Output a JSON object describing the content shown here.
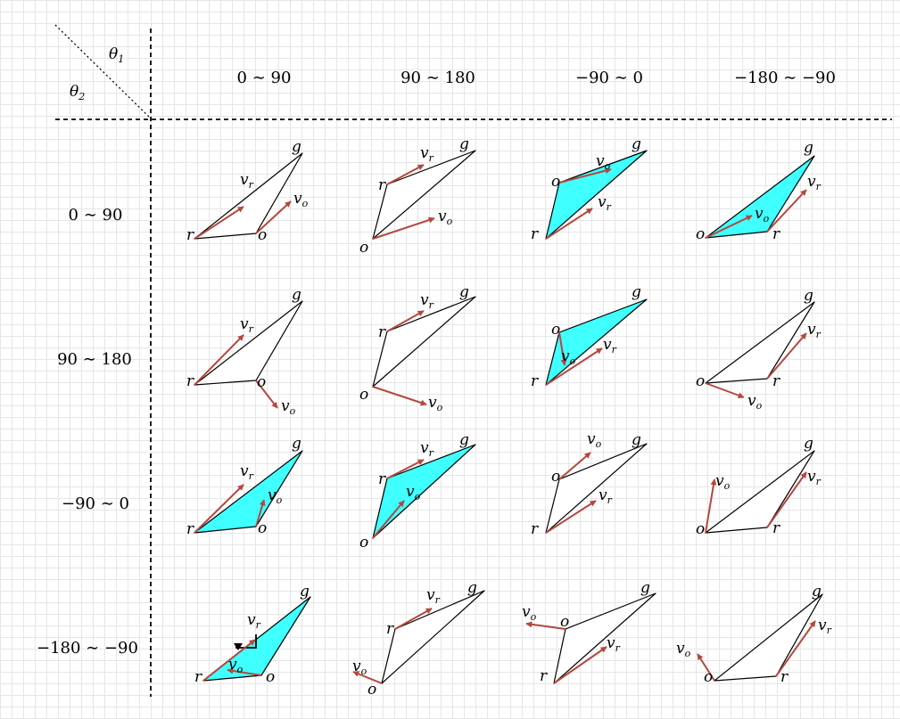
{
  "corner": {
    "top_label": "θ",
    "top_sub": "1",
    "left_label": "θ",
    "left_sub": "2"
  },
  "columns": [
    "0 ∼ 90",
    "90 ∼ 180",
    "−90 ∼ 0",
    "−180 ∼ −90"
  ],
  "rows": [
    "0 ∼ 90",
    "90 ∼ 180",
    "−90 ∼ 0",
    "−180 ∼ −90"
  ],
  "point_labels": {
    "g": "g",
    "r": "r",
    "o": "o",
    "v": "v",
    "r_sub": "r",
    "o_sub": "o"
  },
  "colors": {
    "arrow": "#b5473e",
    "fill": "#40ffff",
    "line": "#000000",
    "grid": "#e6e6e6"
  },
  "cells": [
    {
      "row": 0,
      "col": 0,
      "shaded": false
    },
    {
      "row": 0,
      "col": 1,
      "shaded": false
    },
    {
      "row": 0,
      "col": 2,
      "shaded": true
    },
    {
      "row": 0,
      "col": 3,
      "shaded": true
    },
    {
      "row": 1,
      "col": 0,
      "shaded": false
    },
    {
      "row": 1,
      "col": 1,
      "shaded": false
    },
    {
      "row": 1,
      "col": 2,
      "shaded": true
    },
    {
      "row": 1,
      "col": 3,
      "shaded": false
    },
    {
      "row": 2,
      "col": 0,
      "shaded": true
    },
    {
      "row": 2,
      "col": 1,
      "shaded": true
    },
    {
      "row": 2,
      "col": 2,
      "shaded": false
    },
    {
      "row": 2,
      "col": 3,
      "shaded": false
    },
    {
      "row": 3,
      "col": 0,
      "shaded": true
    },
    {
      "row": 3,
      "col": 1,
      "shaded": false
    },
    {
      "row": 3,
      "col": 2,
      "shaded": false
    },
    {
      "row": 3,
      "col": 3,
      "shaded": false
    }
  ]
}
